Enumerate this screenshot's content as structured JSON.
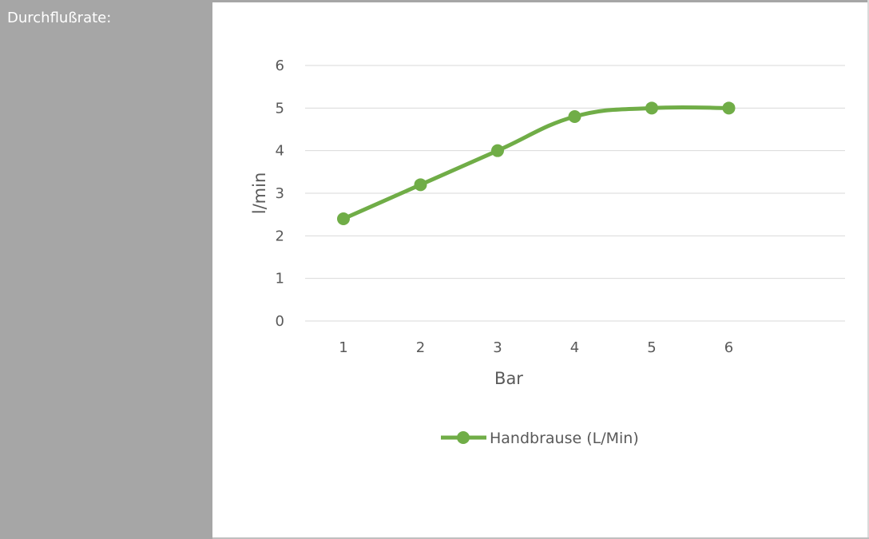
{
  "side_panel": {
    "label": "Durchflußrate:"
  },
  "colors": {
    "panel": "#a6a6a6",
    "series": "#70ad47",
    "grid": "#d9d9d9",
    "text": "#595959"
  },
  "chart_data": {
    "type": "line",
    "title": "",
    "xlabel": "Bar",
    "ylabel": "l/min",
    "categories": [
      "1",
      "2",
      "3",
      "4",
      "5",
      "6"
    ],
    "ylim": [
      0,
      6
    ],
    "yticks": [
      0,
      1,
      2,
      3,
      4,
      5,
      6
    ],
    "grid": "horizontal",
    "legend_position": "bottom",
    "smooth": true,
    "series": [
      {
        "name": "Handbrause (L/Min)",
        "values": [
          2.4,
          3.2,
          4.0,
          4.8,
          5.0,
          5.0
        ],
        "color": "#70ad47",
        "marker": "circle"
      }
    ]
  }
}
